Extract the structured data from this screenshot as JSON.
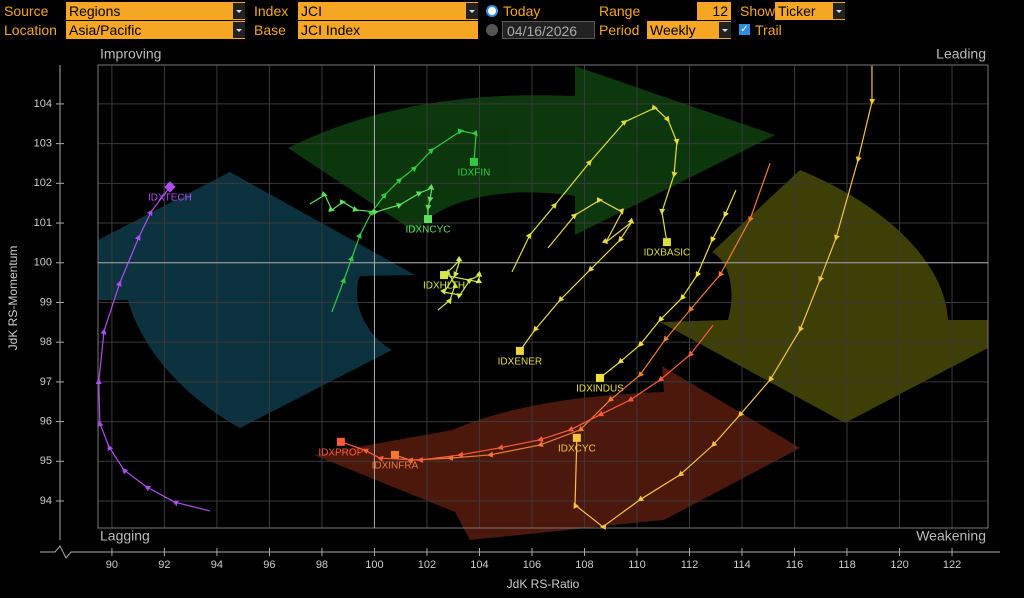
{
  "toolbar": {
    "source_label": "Source",
    "source": "Regions",
    "index_label": "Index",
    "index": "JCI",
    "today": "Today",
    "range_label": "Range",
    "range": "12",
    "show_label": "Show",
    "show": "Ticker",
    "location_label": "Location",
    "location": "Asia/Pacific",
    "base_label": "Base",
    "base": "JCI Index",
    "date": "04/16/2026",
    "period_label": "Period",
    "period": "Weekly",
    "trail": "Trail"
  },
  "chart_data": {
    "type": "rrg",
    "x_label": "JdK RS-Ratio",
    "y_label": "JdK RS-Momentum",
    "quadrants": {
      "improving": "Improving",
      "leading": "Leading",
      "lagging": "Lagging",
      "weakening": "Weakening"
    },
    "xlim": [
      89.47,
      123.37
    ],
    "ylim": [
      93.32,
      104.98
    ],
    "xticks": [
      90,
      92,
      94,
      96,
      98,
      100,
      102,
      104,
      106,
      108,
      110,
      112,
      114,
      116,
      118,
      120,
      122
    ],
    "yticks": [
      94,
      95,
      96,
      97,
      98,
      99,
      100,
      101,
      102,
      103,
      104
    ],
    "center_x": 100,
    "center_y": 100,
    "grid": true,
    "series": [
      {
        "name": "IDXTECH",
        "color": "#b04df0",
        "x": [
          93.73,
          92.4,
          91.33,
          90.46,
          89.89,
          89.54,
          89.5,
          89.7,
          90.3,
          91.03,
          91.49,
          92.21
        ],
        "y": [
          93.75,
          93.97,
          94.35,
          94.78,
          95.36,
          95.96,
          97.02,
          98.28,
          99.49,
          100.65,
          101.28,
          101.91
        ]
      },
      {
        "name": "IDXFIN",
        "color": "#2ecc40",
        "x": [
          98.38,
          98.84,
          99.14,
          99.45,
          99.9,
          100.4,
          100.97,
          101.54,
          102.19,
          103.3,
          103.87,
          103.79
        ],
        "y": [
          98.76,
          99.57,
          100.12,
          100.7,
          101.28,
          101.71,
          102.09,
          102.39,
          102.84,
          103.32,
          103.24,
          102.54
        ]
      },
      {
        "name": "IDXNCYC",
        "color": "#5fe05f",
        "x": [
          97.54,
          98.11,
          98.38,
          98.8,
          99.3,
          100.06,
          100.97,
          101.73,
          102.19,
          102.11,
          102.04,
          102.04
        ],
        "y": [
          101.48,
          101.71,
          101.33,
          101.53,
          101.33,
          101.28,
          101.46,
          101.76,
          101.88,
          101.58,
          101.38,
          101.1
        ]
      },
      {
        "name": "IDXHLTH",
        "color": "#d4e84a",
        "x": [
          102.42,
          102.88,
          103.07,
          102.8,
          103.26,
          103.07,
          102.65,
          103.26,
          103.64,
          104.02,
          103.94,
          102.65
        ],
        "y": [
          98.81,
          99.06,
          99.44,
          99.77,
          100.07,
          99.69,
          99.26,
          99.19,
          99.57,
          99.69,
          99.52,
          99.69
        ]
      },
      {
        "name": "IDXBASIC",
        "color": "#dede3a",
        "x": [
          105.24,
          105.92,
          106.88,
          108.21,
          109.54,
          110.69,
          111.18,
          111.52,
          111.41,
          110.95,
          111.14
        ],
        "y": [
          99.77,
          100.7,
          101.46,
          102.54,
          103.55,
          103.9,
          103.6,
          103.04,
          102.21,
          101.28,
          100.52
        ]
      },
      {
        "name": "IDXENER",
        "color": "#e8d84a",
        "x": [
          106.61,
          107.64,
          108.59,
          109.43,
          108.82,
          109.81,
          109.35,
          108.21,
          107.07,
          106.11,
          105.54
        ],
        "y": [
          100.37,
          101.2,
          101.58,
          101.28,
          100.52,
          101.03,
          100.57,
          99.82,
          99.06,
          98.31,
          97.78
        ]
      },
      {
        "name": "IDXINDUS",
        "color": "#f0e040",
        "x": [
          113.77,
          113.35,
          112.86,
          112.29,
          111.71,
          110.88,
          110.11,
          109.35,
          108.59
        ],
        "y": [
          101.83,
          101.2,
          100.57,
          99.69,
          99.11,
          98.56,
          97.93,
          97.5,
          97.1
        ]
      },
      {
        "name": "IDXCYC",
        "color": "#f5c542",
        "x": [
          118.95,
          118.95,
          118.42,
          117.58,
          116.97,
          116.21,
          115.07,
          113.92,
          112.9,
          111.64,
          110.11,
          108.7,
          107.64,
          107.71
        ],
        "y": [
          104.96,
          104.05,
          102.59,
          100.62,
          99.57,
          98.31,
          97.05,
          96.17,
          95.41,
          94.66,
          94.03,
          93.35,
          93.9,
          95.59
        ]
      },
      {
        "name": "IDXINFRA",
        "color": "#f07a30",
        "x": [
          115.07,
          114.3,
          113.16,
          112.02,
          111.07,
          110.11,
          108.97,
          107.83,
          106.3,
          104.4,
          102.88,
          101.35,
          100.78
        ],
        "y": [
          102.51,
          101.08,
          99.69,
          98.81,
          98.06,
          97.17,
          96.54,
          95.79,
          95.41,
          95.16,
          95.08,
          95.03,
          95.16
        ]
      },
      {
        "name": "IDXPROP",
        "color": "#ff5a3c",
        "x": [
          112.9,
          112.02,
          110.88,
          109.73,
          108.59,
          107.45,
          106.3,
          104.78,
          103.26,
          101.73,
          100.21,
          99.64,
          98.72
        ],
        "y": [
          98.43,
          97.68,
          97.05,
          96.54,
          96.17,
          95.79,
          95.54,
          95.34,
          95.16,
          95.03,
          95.08,
          95.28,
          95.49
        ]
      }
    ]
  }
}
